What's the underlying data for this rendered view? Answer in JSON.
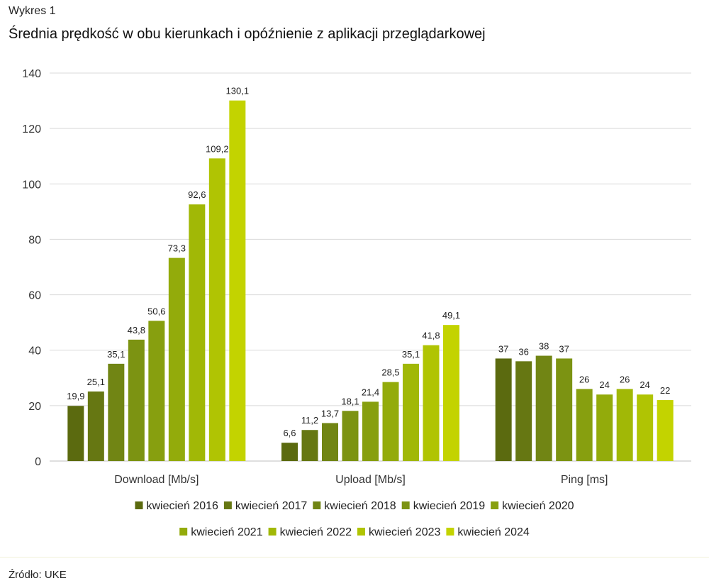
{
  "figure": {
    "label": "Wykres 1",
    "title": "Średnia prędkość w obu kierunkach i opóźnienie z aplikacji przeglądarkowej",
    "source": "Źródło: UKE"
  },
  "chart_data": {
    "type": "bar",
    "categories": [
      "Download [Mb/s]",
      "Upload [Mb/s]",
      "Ping [ms]"
    ],
    "series": [
      {
        "name": "kwiecień 2016",
        "color": "#5b6a0f",
        "values": [
          19.9,
          6.6,
          37
        ]
      },
      {
        "name": "kwiecień 2017",
        "color": "#667712",
        "values": [
          25.1,
          11.2,
          36
        ]
      },
      {
        "name": "kwiecień 2018",
        "color": "#718514",
        "values": [
          35.1,
          13.7,
          38
        ]
      },
      {
        "name": "kwiecień 2019",
        "color": "#7c9312",
        "values": [
          43.8,
          18.1,
          37
        ]
      },
      {
        "name": "kwiecień 2020",
        "color": "#879f0f",
        "values": [
          50.6,
          21.4,
          26
        ]
      },
      {
        "name": "kwiecień 2021",
        "color": "#93ab0b",
        "values": [
          73.3,
          28.5,
          24
        ]
      },
      {
        "name": "kwiecień 2022",
        "color": "#a1b806",
        "values": [
          92.6,
          35.1,
          26
        ]
      },
      {
        "name": "kwiecień 2023",
        "color": "#b0c403",
        "values": [
          109.2,
          41.8,
          24
        ]
      },
      {
        "name": "kwiecień 2024",
        "color": "#c3d300",
        "values": [
          130.1,
          49.1,
          22
        ]
      }
    ],
    "data_labels": [
      [
        "19,9",
        "6,6",
        "37"
      ],
      [
        "25,1",
        "11,2",
        "36"
      ],
      [
        "35,1",
        "13,7",
        "38"
      ],
      [
        "43,8",
        "18,1",
        "37"
      ],
      [
        "50,6",
        "21,4",
        "26"
      ],
      [
        "73,3",
        "28,5",
        "24"
      ],
      [
        "92,6",
        "35,1",
        "26"
      ],
      [
        "109,2",
        "41,8",
        "24"
      ],
      [
        "130,1",
        "49,1",
        "22"
      ]
    ],
    "ylim": [
      0,
      140
    ],
    "yticks": [
      0,
      20,
      40,
      60,
      80,
      100,
      120,
      140
    ],
    "grid": true,
    "legend_position": "bottom"
  }
}
